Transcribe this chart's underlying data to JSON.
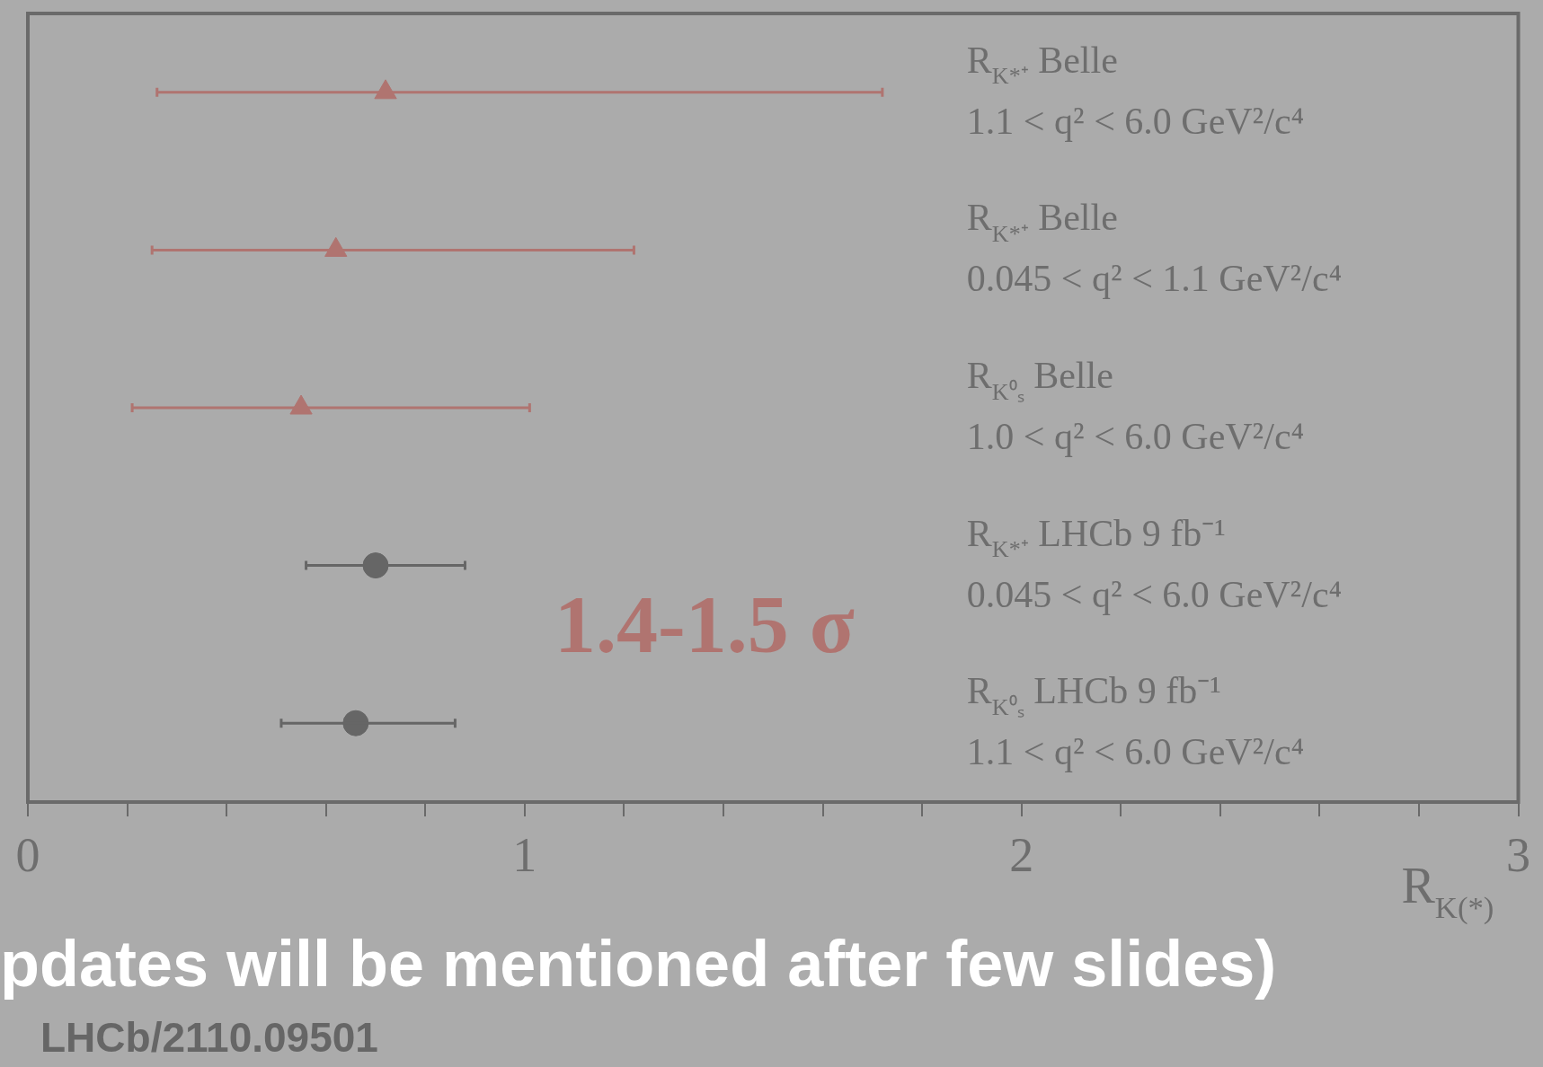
{
  "chart_data": {
    "type": "scatter",
    "orientation": "horizontal",
    "xlabel": "R$_{K(*)}$",
    "categories": [
      "R$_{K*⁺}$ Belle\n1.1 < q² < 6.0 GeV²/c⁴",
      "R$_{K*⁺}$ Belle\n0.045 < q² < 1.1 GeV²/c⁴",
      "R$_{K⁰ₛ}$ Belle\n1.0 < q² < 6.0 GeV²/c⁴",
      "R$_{K*⁺}$ LHCb 9 fb⁻¹\n0.045 < q² < 6.0 GeV²/c⁴",
      "R$_{K⁰ₛ}$ LHCb 9 fb⁻¹\n1.1 < q² < 6.0 GeV²/c⁴"
    ],
    "series": [
      {
        "color": "#b07470",
        "marker": "triangle",
        "values": [
          0.72,
          0.62,
          0.55,
          null,
          null
        ],
        "errors": [
          [
            0.26,
            1.72
          ],
          [
            0.25,
            1.22
          ],
          [
            0.21,
            1.01
          ],
          null,
          null
        ]
      },
      {
        "color": "#666666",
        "marker": "circle",
        "values": [
          null,
          null,
          null,
          0.7,
          0.66
        ],
        "errors": [
          null,
          null,
          null,
          [
            0.56,
            0.88
          ],
          [
            0.51,
            0.86
          ]
        ]
      }
    ],
    "xlim": [
      0,
      3
    ],
    "xticks": [
      0,
      {
        "value": 0.2,
        "label": null
      },
      {
        "value": 0.4,
        "label": null
      },
      {
        "value": 0.6,
        "label": null
      },
      {
        "value": 0.8,
        "label": null
      },
      1,
      {
        "value": 1.2,
        "label": null
      },
      {
        "value": 1.4,
        "label": null
      },
      {
        "value": 1.6,
        "label": null
      },
      {
        "value": 1.8,
        "label": null
      },
      2,
      {
        "value": 2.2,
        "label": null
      },
      {
        "value": 2.4,
        "label": null
      },
      {
        "value": 2.6,
        "label": null
      },
      {
        "value": 2.8,
        "label": null
      },
      3
    ],
    "grid": false,
    "legend": false,
    "annotations": [
      "1.4-1.5 σ",
      "LHCb/2110.09501",
      "pdates will be mentioned after few slides)"
    ]
  }
}
